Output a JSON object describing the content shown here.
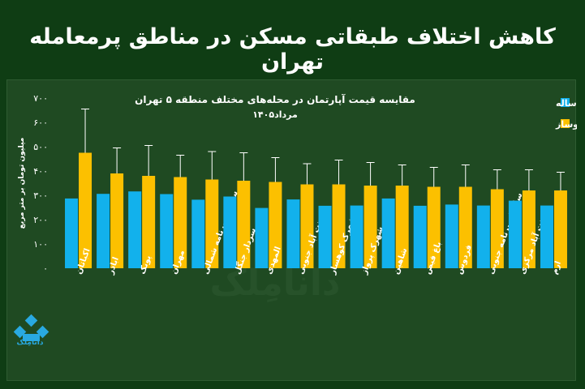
{
  "headline": "کاهش اختلاف طبقاتی مسکن در مناطق پرمعامله تهران",
  "logo": {
    "text": "دانامِلک"
  },
  "watermark": "دانامِلک",
  "colors": {
    "background": "#0f3d14",
    "panel": "#1f4a22",
    "old": "#12b1ec",
    "new": "#fcc000",
    "error": "#ffffff",
    "text": "#ffffff"
  },
  "chart_data": {
    "type": "bar",
    "title": "مقایسه قیمت آپارتمان در محله‌های مختلف منطقه ۵ تهران",
    "subtitle": "مرداد۱۴۰۵",
    "xlabel": "",
    "ylabel": "میلیون تومان بر متر مربع",
    "ylim": [
      0,
      700
    ],
    "yticks": [
      0,
      100,
      200,
      300,
      400,
      500,
      600,
      700
    ],
    "ytick_labels": [
      "۰",
      "۱۰۰",
      "۲۰۰",
      "۳۰۰",
      "۴۰۰",
      "۵۰۰",
      "۶۰۰",
      "۷۰۰"
    ],
    "grid": false,
    "legend": "top-right",
    "categories": [
      "اکباتان",
      "اباذر",
      "پونک",
      "مهران",
      "سازمان برنامه شمالی",
      "سردار جنگل",
      "المهدی",
      "جنت آباد جنوبی",
      "شهرک کوهسار",
      "شهرک پرواز",
      "شاهین",
      "باغ فیض",
      "فردوس",
      "سازمان برنامه جنوبی",
      "جنت آباد مرکزی",
      "ارم"
    ],
    "series": [
      {
        "name": "چندساله",
        "values": [
          287,
          306,
          316,
          305,
          282,
          295,
          248,
          283,
          257,
          258,
          287,
          257,
          262,
          258,
          278,
          258
        ],
        "errors": [
          0,
          0,
          0,
          0,
          0,
          0,
          0,
          0,
          0,
          0,
          0,
          0,
          0,
          0,
          0,
          0
        ]
      },
      {
        "name": "نوساز",
        "values": [
          475,
          390,
          380,
          375,
          365,
          360,
          355,
          345,
          345,
          340,
          340,
          335,
          335,
          325,
          320,
          320
        ],
        "errors": [
          180,
          105,
          125,
          90,
          115,
          115,
          100,
          85,
          100,
          95,
          85,
          80,
          90,
          80,
          85,
          75
        ]
      }
    ]
  }
}
